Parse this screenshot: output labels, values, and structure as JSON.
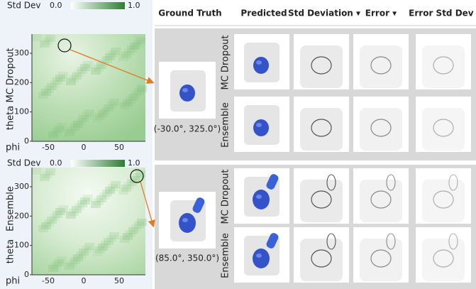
{
  "panels": [
    {
      "colorbar": {
        "label": "Std Dev",
        "min": "0.0",
        "max": "1.0"
      },
      "method": "MC Dropout",
      "y_label": "theta",
      "x_label": "phi",
      "yticks": [
        "300",
        "200",
        "100",
        "0"
      ],
      "xticks": [
        "-50",
        "0",
        "50"
      ]
    },
    {
      "colorbar": {
        "label": "Std Dev",
        "min": "0.0",
        "max": "1.0"
      },
      "method": "Ensemble",
      "y_label": "theta",
      "x_label": "phi",
      "yticks": [
        "300",
        "200",
        "100",
        "0"
      ],
      "xticks": [
        "-50",
        "0",
        "50"
      ]
    }
  ],
  "columns": [
    "Ground Truth",
    "Predicted",
    "Std Deviation ▾",
    "Error ▾",
    "Error Std Dev ▾"
  ],
  "samples": [
    {
      "view": "(-30.0°, 325.0°)",
      "rows": [
        "MC Dropout",
        "Ensemble"
      ]
    },
    {
      "view": "(85.0°, 350.0°)",
      "rows": [
        "MC Dropout",
        "Ensemble"
      ]
    }
  ]
}
